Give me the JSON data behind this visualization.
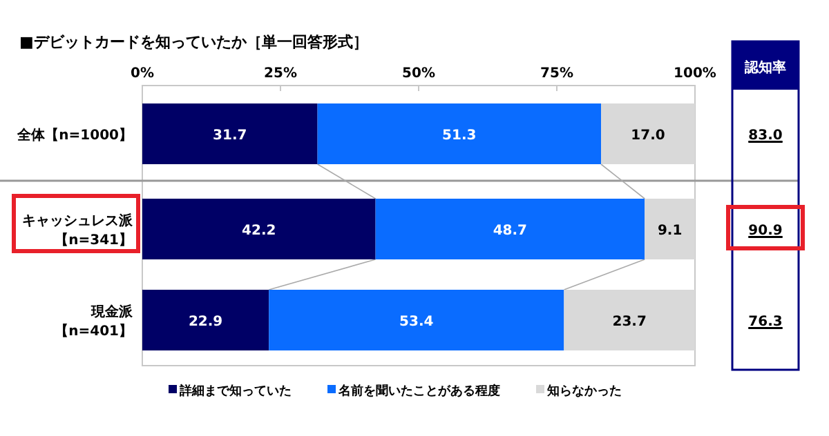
{
  "chart_data": {
    "type": "bar",
    "orientation": "horizontal",
    "stacked": true,
    "title": "■デビットカードを知っていたか［単一回答形式］",
    "categories": [
      "全体【n=1000】",
      "キャッシュレス派【n=341】",
      "現金派【n=401】"
    ],
    "series": [
      {
        "name": "詳細まで知っていた",
        "color": "#000066",
        "values": [
          31.7,
          42.2,
          22.9
        ],
        "value_labels": [
          "31.7",
          "42.2",
          "22.9"
        ]
      },
      {
        "name": "名前を聞いたことがある程度",
        "color": "#0a6cff",
        "values": [
          51.3,
          48.7,
          53.4
        ],
        "value_labels": [
          "51.3",
          "48.7",
          "53.4"
        ]
      },
      {
        "name": "知らなかった",
        "color": "#d9d9d9",
        "values": [
          17.0,
          9.1,
          23.7
        ],
        "value_labels": [
          "17.0",
          "9.1",
          "23.7"
        ]
      }
    ],
    "xlim": [
      0,
      100
    ],
    "xticks": [
      {
        "value": 0,
        "label": "0%"
      },
      {
        "value": 25,
        "label": "25%"
      },
      {
        "value": 50,
        "label": "50%"
      },
      {
        "value": 75,
        "label": "75%"
      },
      {
        "value": 100,
        "label": "100%"
      }
    ],
    "legend": "bottom",
    "annotations": [
      "認知率",
      "83.0",
      "90.9",
      "76.3"
    ]
  }
}
